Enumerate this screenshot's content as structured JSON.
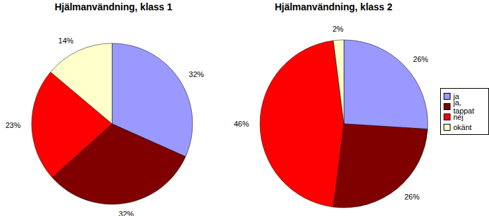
{
  "chart_data": [
    {
      "type": "pie",
      "title": "Hjälmanvändning, klass 1",
      "categories": [
        "ja",
        "ja, tappat",
        "nej",
        "okänt"
      ],
      "values": [
        32,
        32,
        23,
        14
      ],
      "value_labels": [
        "32%",
        "32%",
        "23%",
        "14%"
      ],
      "colors": [
        "#9999ff",
        "#800000",
        "#ff0000",
        "#ffffcc"
      ],
      "data_labels": true
    },
    {
      "type": "pie",
      "title": "Hjälmanvändning, klass 2",
      "categories": [
        "ja",
        "ja, tappat",
        "nej",
        "okänt"
      ],
      "values": [
        26,
        26,
        46,
        2
      ],
      "value_labels": [
        "26%",
        "26%",
        "46%",
        "2%"
      ],
      "colors": [
        "#9999ff",
        "#800000",
        "#ff0000",
        "#ffffcc"
      ],
      "data_labels": true,
      "legend": "right"
    }
  ]
}
